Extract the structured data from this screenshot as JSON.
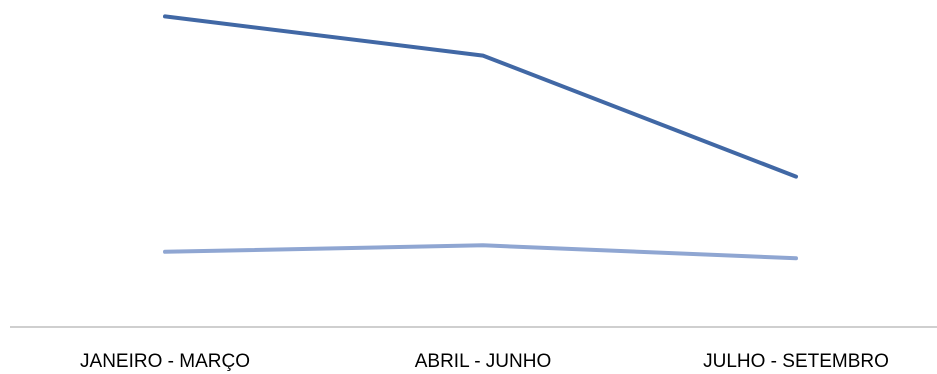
{
  "chart_data": {
    "type": "line",
    "title": "",
    "xlabel": "",
    "ylabel": "",
    "categories": [
      "JANEIRO - MARÇO",
      "ABRIL - JUNHO",
      "JULHO - SETEMBRO"
    ],
    "ylim": [
      0,
      100
    ],
    "grid": false,
    "legend": "none",
    "series": [
      {
        "values": [
          95,
          83,
          46
        ],
        "color": "#4168a5"
      },
      {
        "values": [
          23,
          25,
          21
        ],
        "color": "#8fa6d2"
      }
    ]
  }
}
